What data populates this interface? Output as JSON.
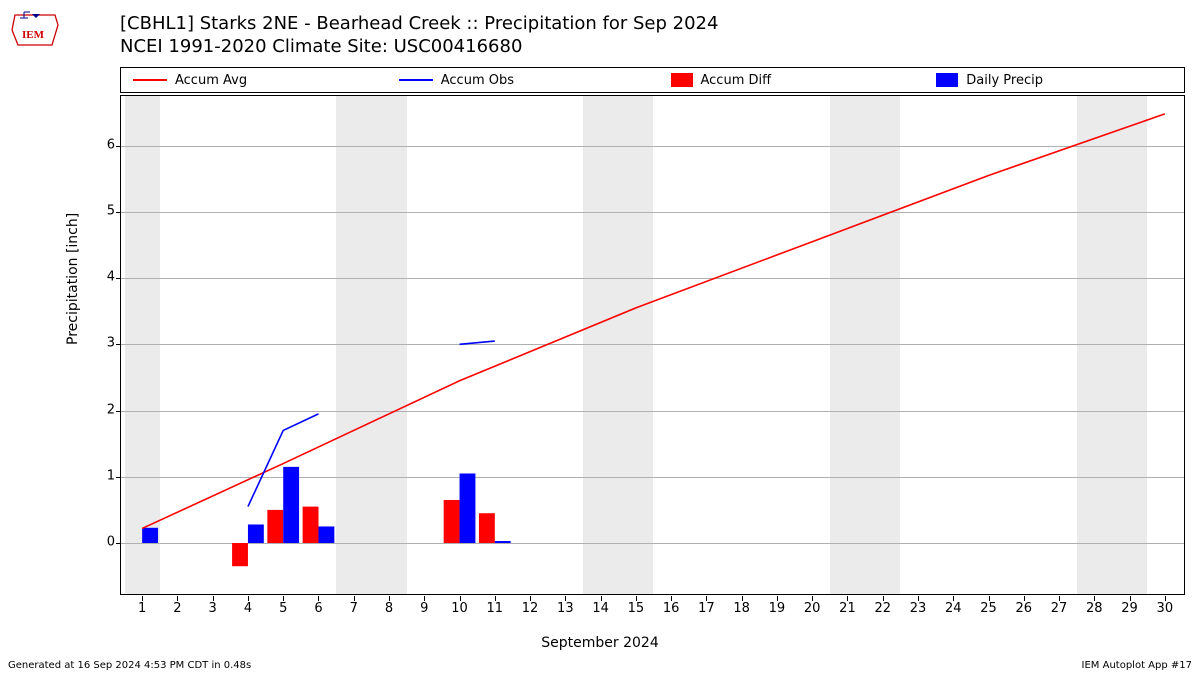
{
  "title_line1": "[CBHL1] Starks 2NE - Bearhead Creek :: Precipitation for Sep 2024",
  "title_line2": "NCEI 1991-2020 Climate Site: USC00416680",
  "legend": {
    "accum_avg": "Accum Avg",
    "accum_obs": "Accum Obs",
    "accum_diff": "Accum Diff",
    "daily_precip": "Daily Precip"
  },
  "ylabel": "Precipitation [inch]",
  "xlabel": "September 2024",
  "footer_left": "Generated at 16 Sep 2024 4:53 PM CDT in 0.48s",
  "footer_right": "IEM Autoplot App #17",
  "chart": {
    "type": "mixed-bar-line",
    "background_color": "#ffffff",
    "weekend_band_color": "#ebebeb",
    "grid_color": "#b0b0b0",
    "colors": {
      "accum_avg": "#ff0000",
      "accum_obs": "#0000ff",
      "accum_diff": "#ff0000",
      "daily_precip": "#0000ff"
    },
    "x_days": [
      1,
      2,
      3,
      4,
      5,
      6,
      7,
      8,
      9,
      10,
      11,
      12,
      13,
      14,
      15,
      16,
      17,
      18,
      19,
      20,
      21,
      22,
      23,
      24,
      25,
      26,
      27,
      28,
      29,
      30
    ],
    "x_range": [
      0.4,
      30.6
    ],
    "weekend_days": [
      1,
      7,
      8,
      14,
      15,
      21,
      22,
      28,
      29
    ],
    "ylim": [
      -0.8,
      6.75
    ],
    "yticks": [
      0,
      1,
      2,
      3,
      4,
      5,
      6
    ],
    "bar_width": 0.45,
    "accum_diff_bars": [
      {
        "day": 4,
        "value": -0.35
      },
      {
        "day": 5,
        "value": 0.5
      },
      {
        "day": 6,
        "value": 0.55
      },
      {
        "day": 10,
        "value": 0.65
      },
      {
        "day": 11,
        "value": 0.45
      }
    ],
    "daily_precip_bars": [
      {
        "day": 1,
        "value": 0.23
      },
      {
        "day": 4,
        "value": 0.28
      },
      {
        "day": 5,
        "value": 1.15
      },
      {
        "day": 6,
        "value": 0.25
      },
      {
        "day": 10,
        "value": 1.05
      },
      {
        "day": 11,
        "value": 0.03
      }
    ],
    "accum_avg_line": [
      {
        "x": 1,
        "y": 0.22
      },
      {
        "x": 5,
        "y": 1.2
      },
      {
        "x": 10,
        "y": 2.45
      },
      {
        "x": 15,
        "y": 3.55
      },
      {
        "x": 20,
        "y": 4.55
      },
      {
        "x": 25,
        "y": 5.55
      },
      {
        "x": 30,
        "y": 6.48
      }
    ],
    "accum_obs_line": [
      {
        "x": 4,
        "y": 0.55
      },
      {
        "x": 5,
        "y": 1.7
      },
      {
        "x": 6,
        "y": 1.95
      },
      {
        "x": 10,
        "y": 3.0
      },
      {
        "x": 11,
        "y": 3.05
      }
    ],
    "line_width": 1.6,
    "title_fontsize": 18,
    "label_fontsize": 14,
    "tick_fontsize": 13
  }
}
